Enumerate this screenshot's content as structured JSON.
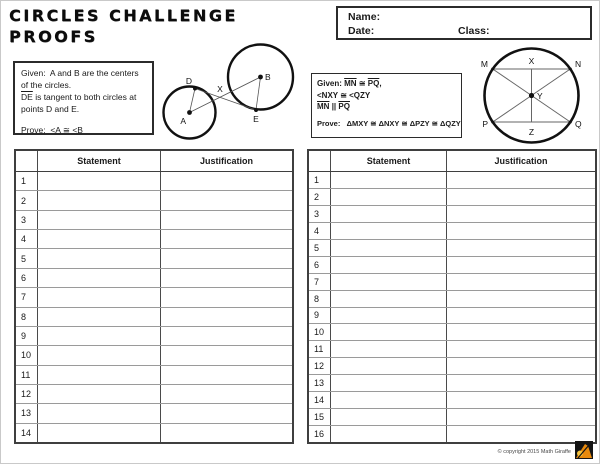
{
  "page": {
    "title_line1": "CIRCLES CHALLENGE",
    "title_line2": "PROOFS",
    "copyright": "© copyright 2015 Math Giraffe"
  },
  "header_box": {
    "name_label": "Name:",
    "date_label": "Date:",
    "class_label": "Class:"
  },
  "problem_left": {
    "given_label": "Given:",
    "given_line1": "A and B are the centers",
    "given_line2": "of the circles.",
    "segment_de": "DE",
    "given_line3": "is tangent to both circles at",
    "given_line4": "points D and E.",
    "prove_label": "Prove:",
    "prove_text": "<A ≅ <B",
    "labels": {
      "a": "A",
      "b": "B",
      "d": "D",
      "e": "E",
      "x": "X"
    }
  },
  "problem_right": {
    "given_label": "Given:",
    "segment_mn": "MN",
    "congruent": "≅",
    "segment_pq": "PQ",
    "comma": ",",
    "given_line2": "<NXY ≅ <QZY",
    "parallel": "||",
    "prove_label": "Prove:",
    "prove_text": "ΔMXY ≅ ΔNXY ≅ ΔPZY ≅ ΔQZY",
    "labels": {
      "m": "M",
      "n": "N",
      "x": "X",
      "y": "Y",
      "p": "P",
      "q": "Q",
      "z": "Z"
    }
  },
  "table_left": {
    "statement_header": "Statement",
    "justification_header": "Justification",
    "row_numbers": [
      "1",
      "2",
      "3",
      "4",
      "5",
      "6",
      "7",
      "8",
      "9",
      "10",
      "11",
      "12",
      "13",
      "14"
    ]
  },
  "table_right": {
    "statement_header": "Statement",
    "justification_header": "Justification",
    "row_numbers": [
      "1",
      "2",
      "3",
      "4",
      "5",
      "6",
      "7",
      "8",
      "9",
      "10",
      "11",
      "12",
      "13",
      "14",
      "15",
      "16"
    ]
  },
  "logo": {
    "bg": "#141414",
    "orange": "#e8890c",
    "yellow": "#f6c23d"
  }
}
